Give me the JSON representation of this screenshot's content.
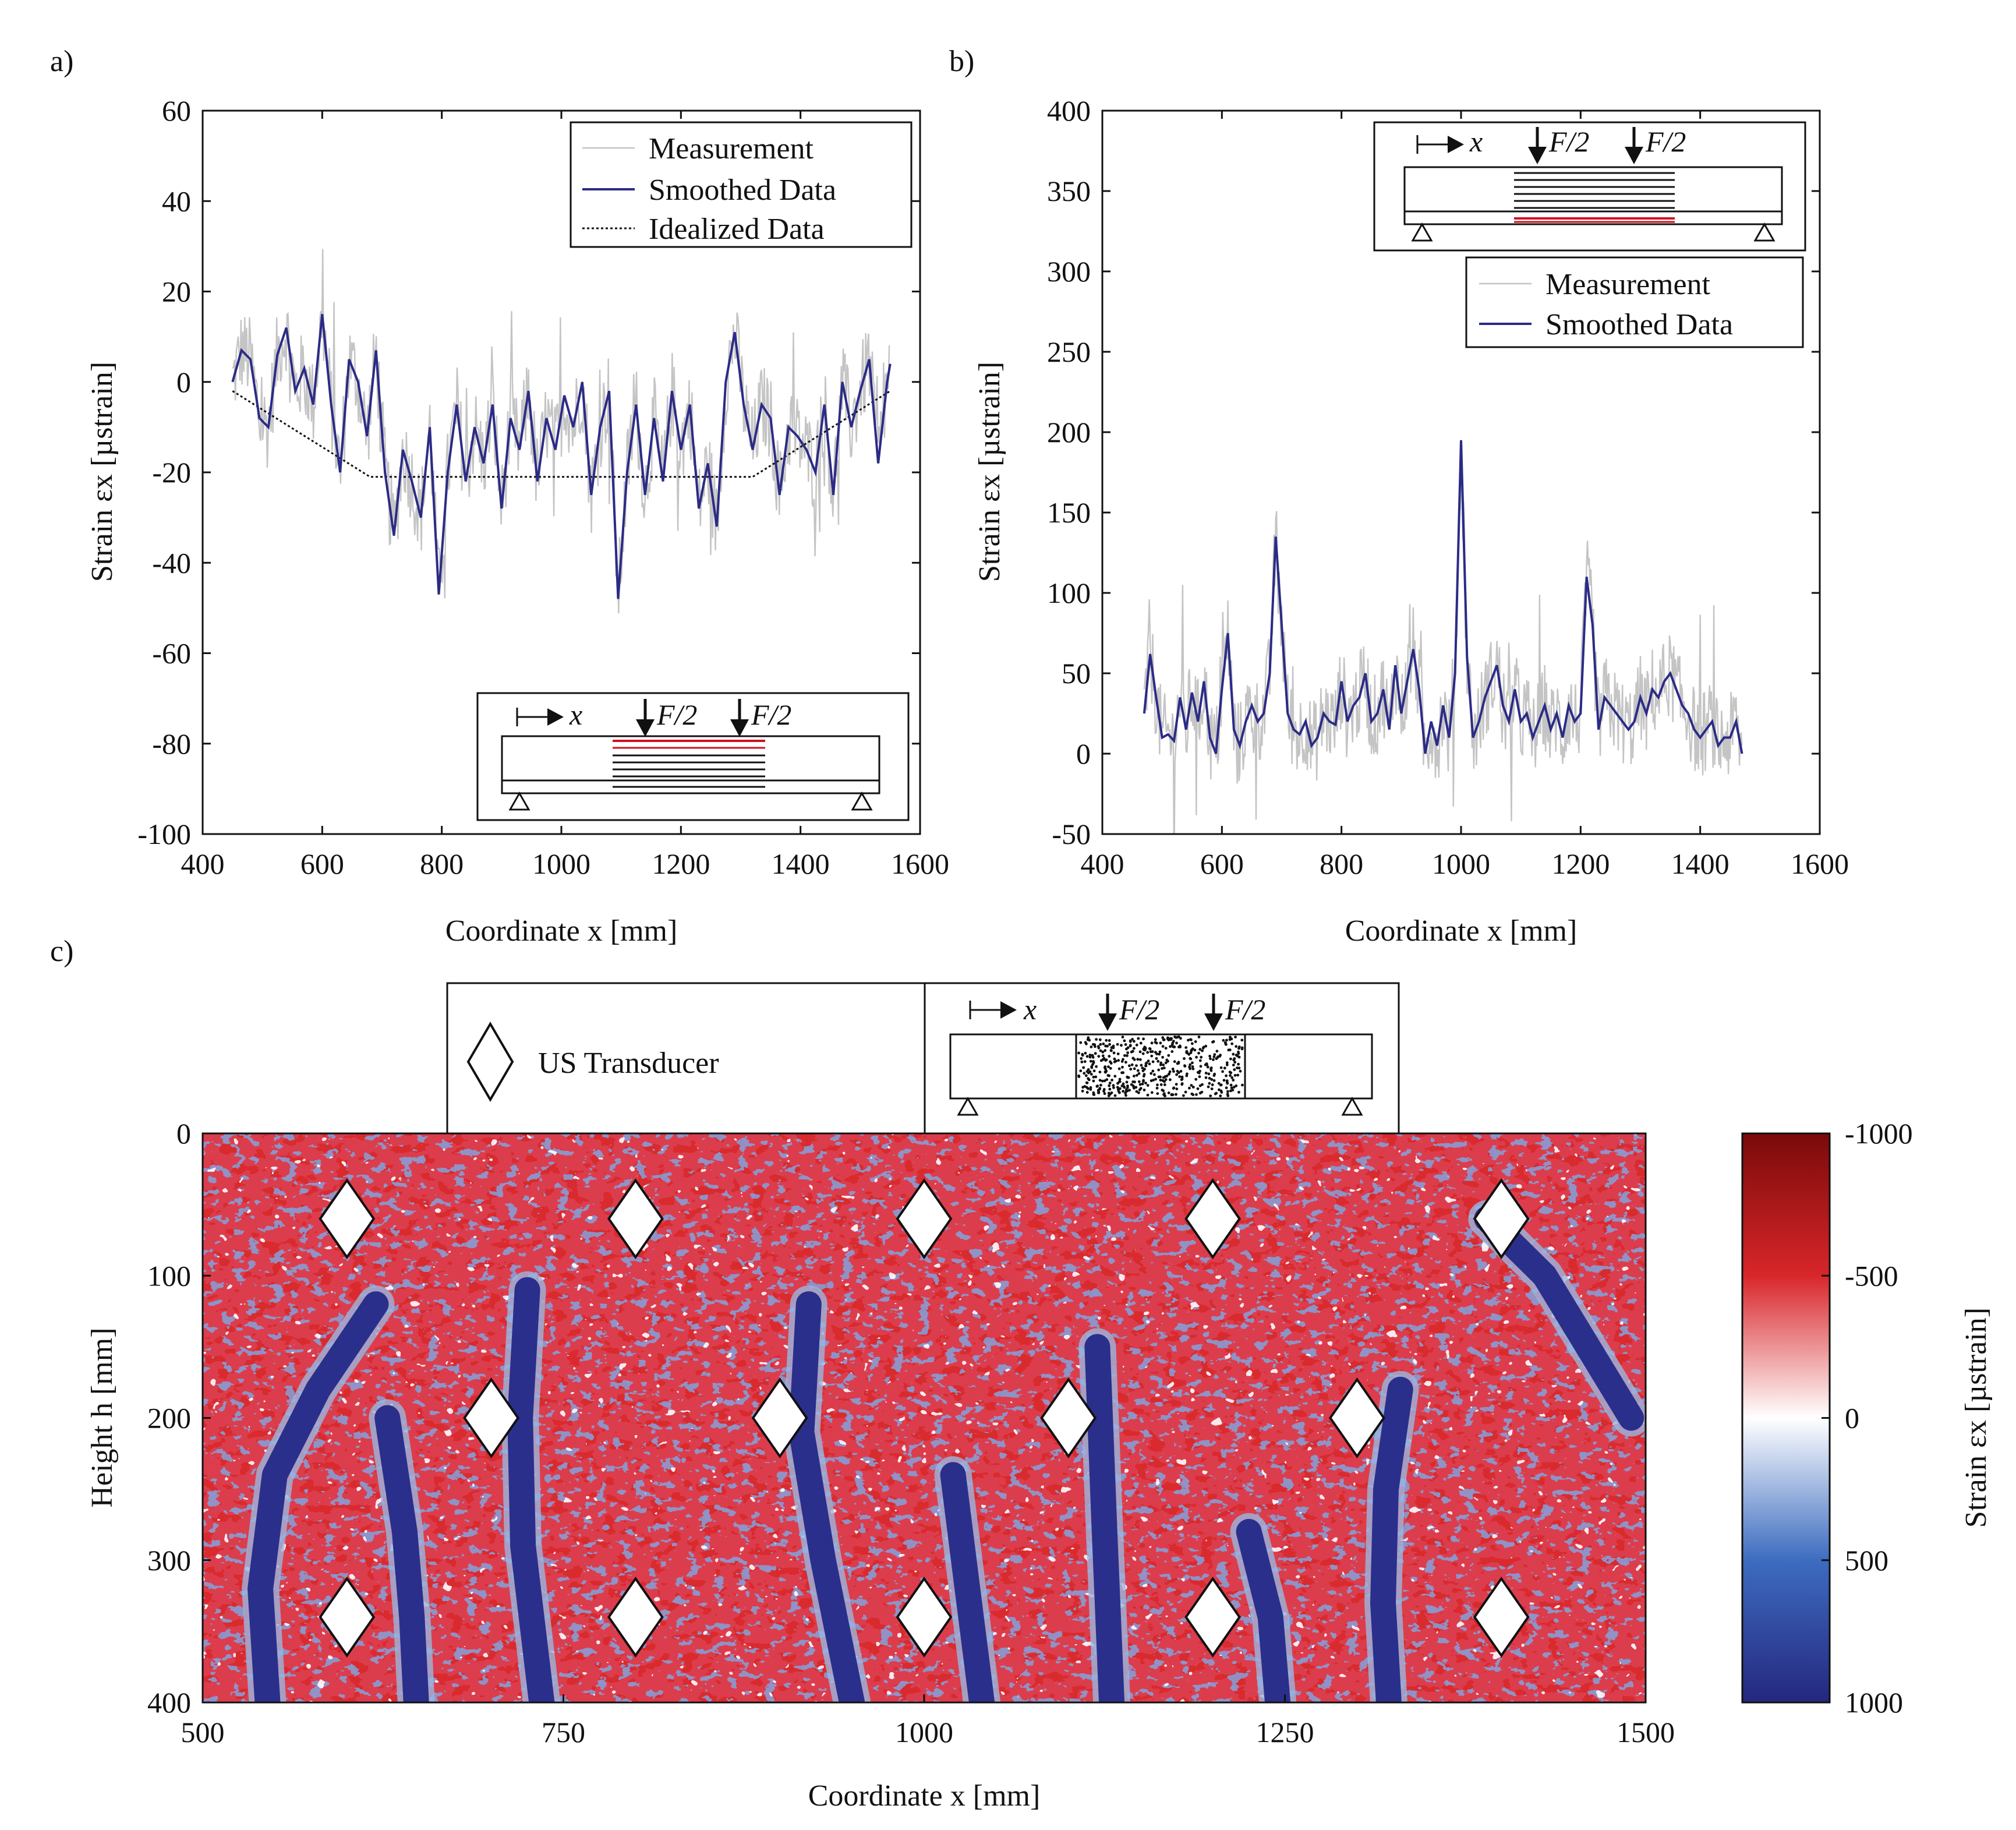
{
  "panels": {
    "a": {
      "label": "a)",
      "chart_data": {
        "type": "line",
        "xlabel": "Coordinate x [mm]",
        "ylabel": "Strain εx [µstrain]",
        "xlim": [
          400,
          1600
        ],
        "ylim": [
          -100,
          60
        ],
        "xticks": [
          "400",
          "600",
          "800",
          "1000",
          "1200",
          "1400",
          "1600"
        ],
        "yticks": [
          "60",
          "40",
          "20",
          "0",
          "-20",
          "-40",
          "-60",
          "-80",
          "-100"
        ],
        "legend": [
          "Measurement",
          "Smoothed Data",
          "Idealized Data"
        ],
        "legend_position": "top-right",
        "inset": {
          "x_label": "x",
          "load_left": "F/2",
          "load_right": "F/2"
        },
        "series": [
          {
            "name": "Idealized Data",
            "x": [
              450,
              680,
              1320,
              1550
            ],
            "values": [
              -2,
              -21,
              -21,
              -2
            ]
          },
          {
            "name": "Smoothed Data",
            "x": [
              450,
              465,
              480,
              495,
              510,
              525,
              540,
              555,
              570,
              585,
              600,
              615,
              630,
              645,
              660,
              675,
              690,
              705,
              720,
              735,
              750,
              765,
              780,
              795,
              810,
              825,
              840,
              855,
              870,
              885,
              900,
              915,
              930,
              945,
              960,
              975,
              990,
              1005,
              1020,
              1035,
              1050,
              1065,
              1080,
              1095,
              1110,
              1125,
              1140,
              1155,
              1170,
              1185,
              1200,
              1215,
              1230,
              1245,
              1260,
              1275,
              1290,
              1305,
              1320,
              1335,
              1350,
              1365,
              1380,
              1395,
              1410,
              1425,
              1440,
              1455,
              1470,
              1485,
              1500,
              1515,
              1530,
              1545,
              1550
            ],
            "values": [
              0,
              7,
              5,
              -8,
              -10,
              6,
              12,
              -2,
              3,
              -5,
              15,
              -5,
              -20,
              5,
              0,
              -12,
              7,
              -20,
              -34,
              -15,
              -22,
              -30,
              -10,
              -47,
              -20,
              -5,
              -22,
              -10,
              -18,
              -5,
              -28,
              -8,
              -15,
              -2,
              -22,
              -8,
              -15,
              -3,
              -10,
              0,
              -25,
              -10,
              -2,
              -48,
              -20,
              -5,
              -25,
              -8,
              -22,
              -2,
              -15,
              -5,
              -28,
              -18,
              -32,
              0,
              11,
              -5,
              -15,
              -5,
              -8,
              -25,
              -10,
              -12,
              -15,
              -20,
              -5,
              -25,
              0,
              -10,
              -2,
              5,
              -18,
              0,
              4
            ]
          }
        ]
      }
    },
    "b": {
      "label": "b)",
      "chart_data": {
        "type": "line",
        "xlabel": "Coordinate x [mm]",
        "ylabel": "Strain εx [µstrain]",
        "xlim": [
          400,
          1600
        ],
        "ylim": [
          -50,
          400
        ],
        "xticks": [
          "400",
          "600",
          "800",
          "1000",
          "1200",
          "1400",
          "1600"
        ],
        "yticks": [
          "400",
          "350",
          "300",
          "250",
          "200",
          "150",
          "100",
          "50",
          "0",
          "-50"
        ],
        "legend": [
          "Measurement",
          "Smoothed Data"
        ],
        "legend_position": "top-right",
        "inset": {
          "x_label": "x",
          "load_left": "F/2",
          "load_right": "F/2"
        },
        "series": [
          {
            "name": "Smoothed Data",
            "x": [
              470,
              480,
              490,
              500,
              510,
              520,
              530,
              540,
              550,
              560,
              570,
              580,
              590,
              600,
              610,
              620,
              630,
              640,
              650,
              660,
              670,
              680,
              690,
              700,
              710,
              720,
              730,
              740,
              750,
              760,
              770,
              780,
              790,
              800,
              810,
              820,
              830,
              840,
              850,
              860,
              870,
              880,
              890,
              900,
              910,
              920,
              930,
              940,
              950,
              960,
              970,
              980,
              990,
              1000,
              1010,
              1020,
              1030,
              1040,
              1050,
              1060,
              1070,
              1080,
              1090,
              1100,
              1110,
              1120,
              1130,
              1140,
              1150,
              1160,
              1170,
              1180,
              1190,
              1200,
              1210,
              1220,
              1230,
              1240,
              1250,
              1260,
              1270,
              1280,
              1290,
              1300,
              1310,
              1320,
              1330,
              1340,
              1350,
              1360,
              1370,
              1380,
              1390,
              1400,
              1410,
              1420,
              1430,
              1440,
              1450,
              1460,
              1470
            ],
            "values": [
              25,
              62,
              35,
              10,
              12,
              8,
              35,
              15,
              38,
              20,
              45,
              10,
              0,
              40,
              75,
              15,
              5,
              20,
              30,
              20,
              25,
              50,
              135,
              80,
              25,
              15,
              12,
              20,
              5,
              10,
              25,
              20,
              18,
              45,
              20,
              30,
              35,
              50,
              20,
              25,
              40,
              15,
              55,
              25,
              45,
              65,
              40,
              0,
              20,
              5,
              30,
              10,
              50,
              195,
              60,
              10,
              20,
              35,
              45,
              55,
              30,
              20,
              40,
              20,
              25,
              10,
              20,
              30,
              15,
              25,
              10,
              30,
              20,
              25,
              110,
              80,
              15,
              35,
              30,
              25,
              20,
              15,
              20,
              35,
              25,
              40,
              35,
              45,
              50,
              40,
              30,
              25,
              15,
              10,
              15,
              20,
              5,
              10,
              10,
              20,
              0
            ]
          }
        ]
      }
    },
    "c": {
      "label": "c)",
      "chart_data": {
        "type": "heatmap",
        "xlabel": "Coordinate x [mm]",
        "ylabel": "Height h [mm]",
        "xlim": [
          500,
          1500
        ],
        "ylim": [
          0,
          400
        ],
        "xticks": [
          "500",
          "750",
          "1000",
          "1250",
          "1500"
        ],
        "yticks": [
          "0",
          "100",
          "200",
          "300",
          "400"
        ],
        "colorbar_label": "Strain εx [µstrain]",
        "colorbar_ticks": [
          "-1000",
          "-500",
          "0",
          "500",
          "1000"
        ],
        "colorbar_range": [
          -1000,
          1000
        ],
        "legend_marker_label": "US Transducer",
        "inset": {
          "x_label": "x",
          "load_left": "F/2",
          "load_right": "F/2"
        },
        "transducers_mm": [
          [
            600,
            60
          ],
          [
            800,
            60
          ],
          [
            1000,
            60
          ],
          [
            1200,
            60
          ],
          [
            1400,
            60
          ],
          [
            700,
            200
          ],
          [
            900,
            200
          ],
          [
            1100,
            200
          ],
          [
            1300,
            200
          ],
          [
            600,
            340
          ],
          [
            800,
            340
          ],
          [
            1000,
            340
          ],
          [
            1200,
            340
          ],
          [
            1400,
            340
          ]
        ],
        "cracks_mm": [
          {
            "x": [
              620,
              580,
              550,
              540,
              545
            ],
            "h": [
              120,
              180,
              240,
              320,
              400
            ]
          },
          {
            "x": [
              628,
              640,
              645,
              648
            ],
            "h": [
              200,
              280,
              340,
              400
            ]
          },
          {
            "x": [
              725,
              720,
              722,
              735
            ],
            "h": [
              110,
              200,
              290,
              400
            ]
          },
          {
            "x": [
              920,
              915,
              930,
              950
            ],
            "h": [
              120,
              210,
              300,
              400
            ]
          },
          {
            "x": [
              1020,
              1030,
              1040
            ],
            "h": [
              240,
              320,
              400
            ]
          },
          {
            "x": [
              1120,
              1125,
              1130
            ],
            "h": [
              150,
              280,
              400
            ]
          },
          {
            "x": [
              1225,
              1240,
              1245
            ],
            "h": [
              280,
              340,
              400
            ]
          },
          {
            "x": [
              1330,
              1320,
              1318,
              1322
            ],
            "h": [
              180,
              250,
              330,
              400
            ]
          },
          {
            "x": [
              1390,
              1430,
              1460,
              1490
            ],
            "h": [
              60,
              100,
              150,
              200
            ]
          }
        ]
      }
    }
  },
  "colors": {
    "measurement": "#c4c4c4",
    "smoothed": "#2b2b86",
    "heat_blue": "#2a2f8c",
    "heat_red": "#b2101a"
  }
}
